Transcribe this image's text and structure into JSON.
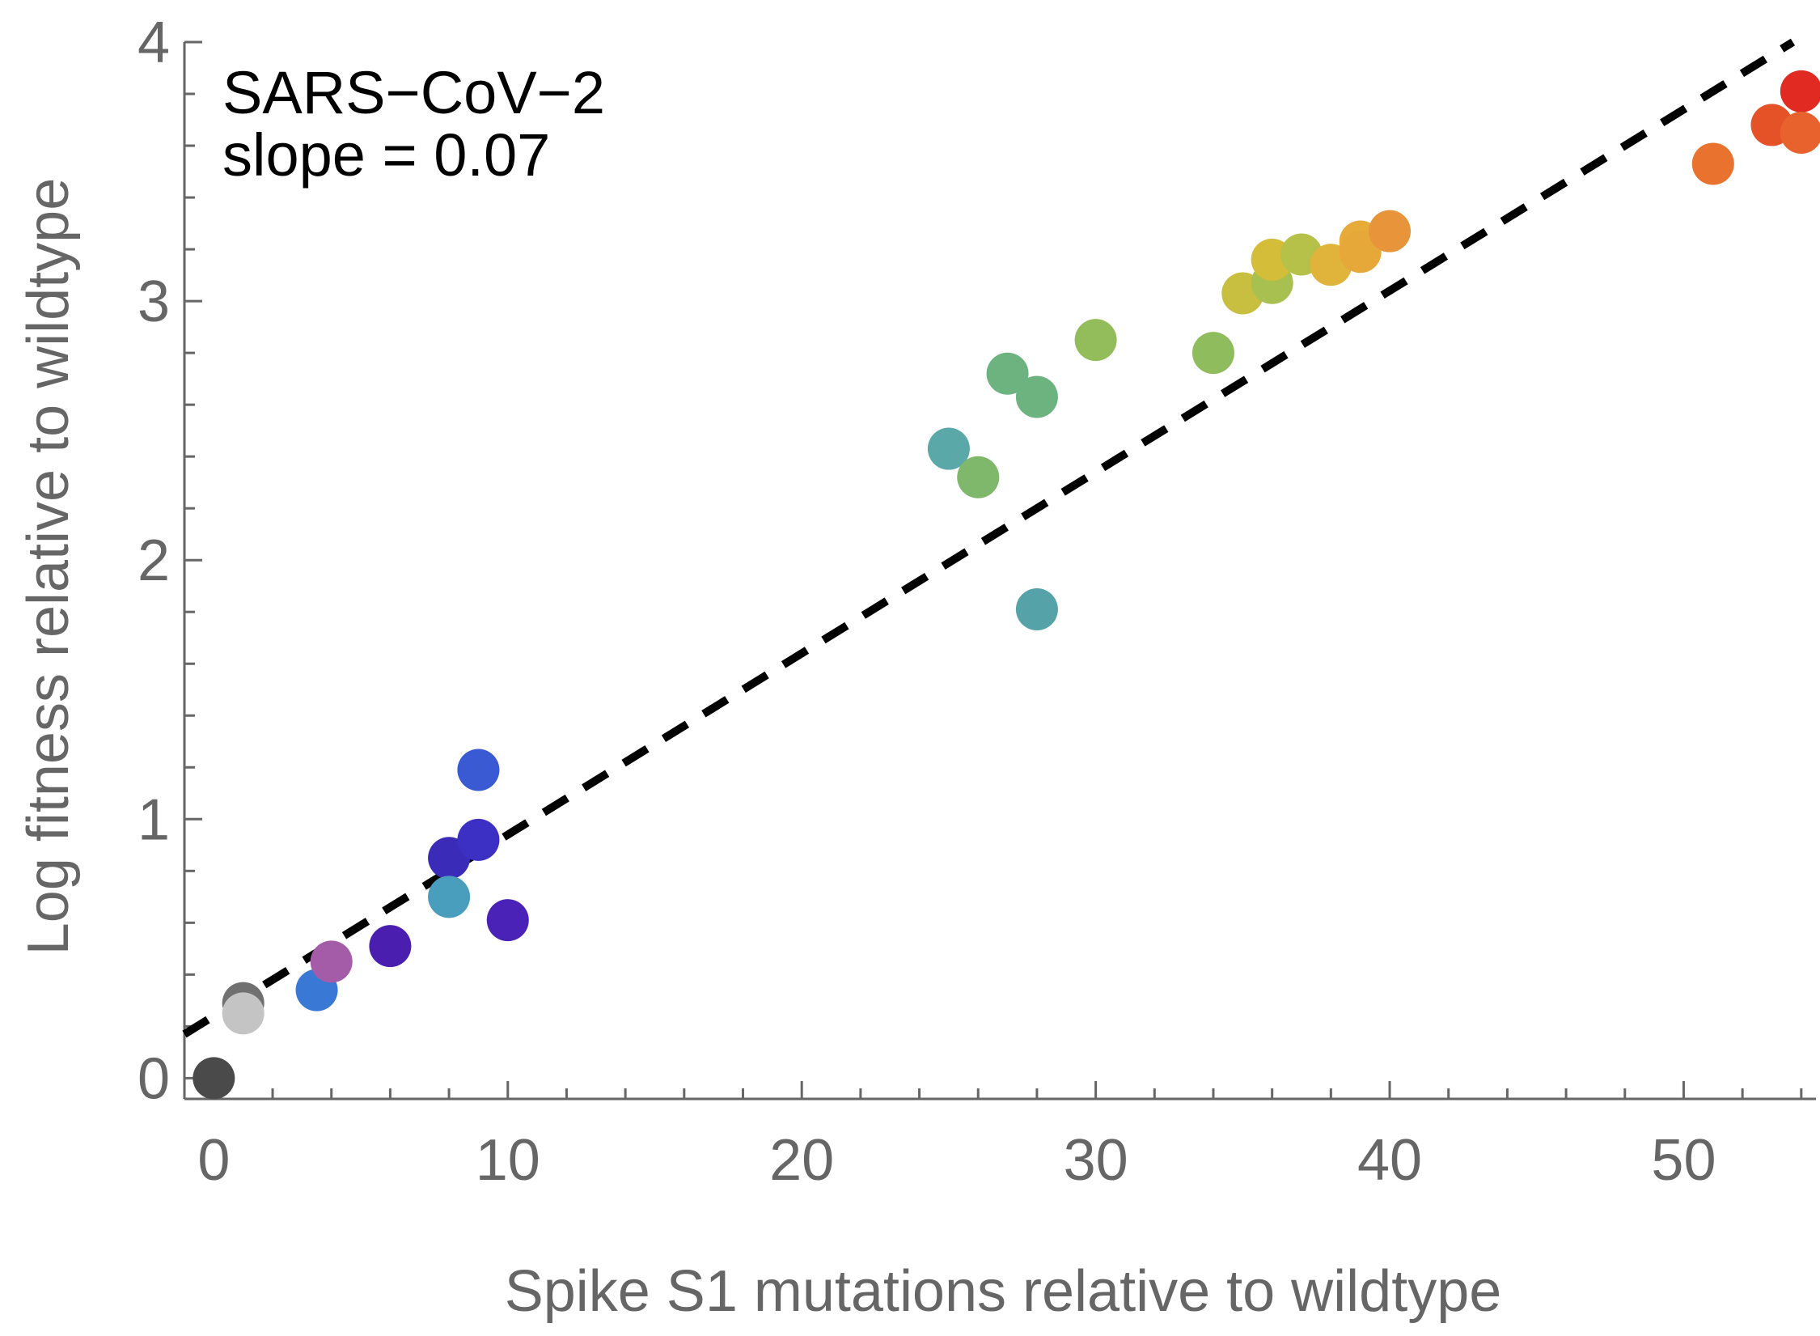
{
  "chart_data": {
    "type": "scatter",
    "xlabel": "Spike S1 mutations relative to wildtype",
    "ylabel": "Log fitness relative to wildtype",
    "xlim": [
      -1,
      54.5
    ],
    "ylim": [
      -0.08,
      4
    ],
    "xticks": [
      "0",
      "10",
      "20",
      "30",
      "40",
      "50"
    ],
    "yticks": [
      "0",
      "1",
      "2",
      "3",
      "4"
    ],
    "annotations": [
      "SARS−CoV−2",
      "slope = 0.07"
    ],
    "fit_line": {
      "slope": 0.07,
      "intercept": 0.24,
      "style": "dashed",
      "color": "#000000"
    },
    "grid": false,
    "points": [
      {
        "x": 0,
        "y": 0.0,
        "color": "#4a4a4a"
      },
      {
        "x": 1,
        "y": 0.29,
        "color": "#707070"
      },
      {
        "x": 1,
        "y": 0.25,
        "color": "#c4c4c4"
      },
      {
        "x": 3.5,
        "y": 0.34,
        "color": "#3a78d6"
      },
      {
        "x": 4,
        "y": 0.45,
        "color": "#a45ca8"
      },
      {
        "x": 6,
        "y": 0.51,
        "color": "#4a1fb0"
      },
      {
        "x": 8,
        "y": 0.85,
        "color": "#3a2bb8"
      },
      {
        "x": 8,
        "y": 0.7,
        "color": "#4a9ebd"
      },
      {
        "x": 9,
        "y": 0.92,
        "color": "#3b2fc4"
      },
      {
        "x": 9,
        "y": 1.19,
        "color": "#3a5ad4"
      },
      {
        "x": 10,
        "y": 0.61,
        "color": "#4b22b8"
      },
      {
        "x": 25,
        "y": 2.43,
        "color": "#5aa8a8"
      },
      {
        "x": 26,
        "y": 2.32,
        "color": "#7fb86a"
      },
      {
        "x": 27,
        "y": 2.72,
        "color": "#6db37f"
      },
      {
        "x": 28,
        "y": 2.63,
        "color": "#6db37f"
      },
      {
        "x": 28,
        "y": 1.81,
        "color": "#55a2a8"
      },
      {
        "x": 30,
        "y": 2.85,
        "color": "#93bd5a"
      },
      {
        "x": 34,
        "y": 2.8,
        "color": "#8fbc5c"
      },
      {
        "x": 35,
        "y": 3.03,
        "color": "#c8be40"
      },
      {
        "x": 36,
        "y": 3.07,
        "color": "#a8c050"
      },
      {
        "x": 36,
        "y": 3.16,
        "color": "#d4bd38"
      },
      {
        "x": 37,
        "y": 3.18,
        "color": "#b5c148"
      },
      {
        "x": 38,
        "y": 3.14,
        "color": "#e0b43a"
      },
      {
        "x": 39,
        "y": 3.23,
        "color": "#e6ab38"
      },
      {
        "x": 39,
        "y": 3.19,
        "color": "#e6a838"
      },
      {
        "x": 40,
        "y": 3.27,
        "color": "#e8943a"
      },
      {
        "x": 51,
        "y": 3.53,
        "color": "#e8722e"
      },
      {
        "x": 53,
        "y": 3.68,
        "color": "#e65228"
      },
      {
        "x": 54,
        "y": 3.81,
        "color": "#e02a22"
      },
      {
        "x": 54,
        "y": 3.65,
        "color": "#e8622e"
      }
    ]
  }
}
